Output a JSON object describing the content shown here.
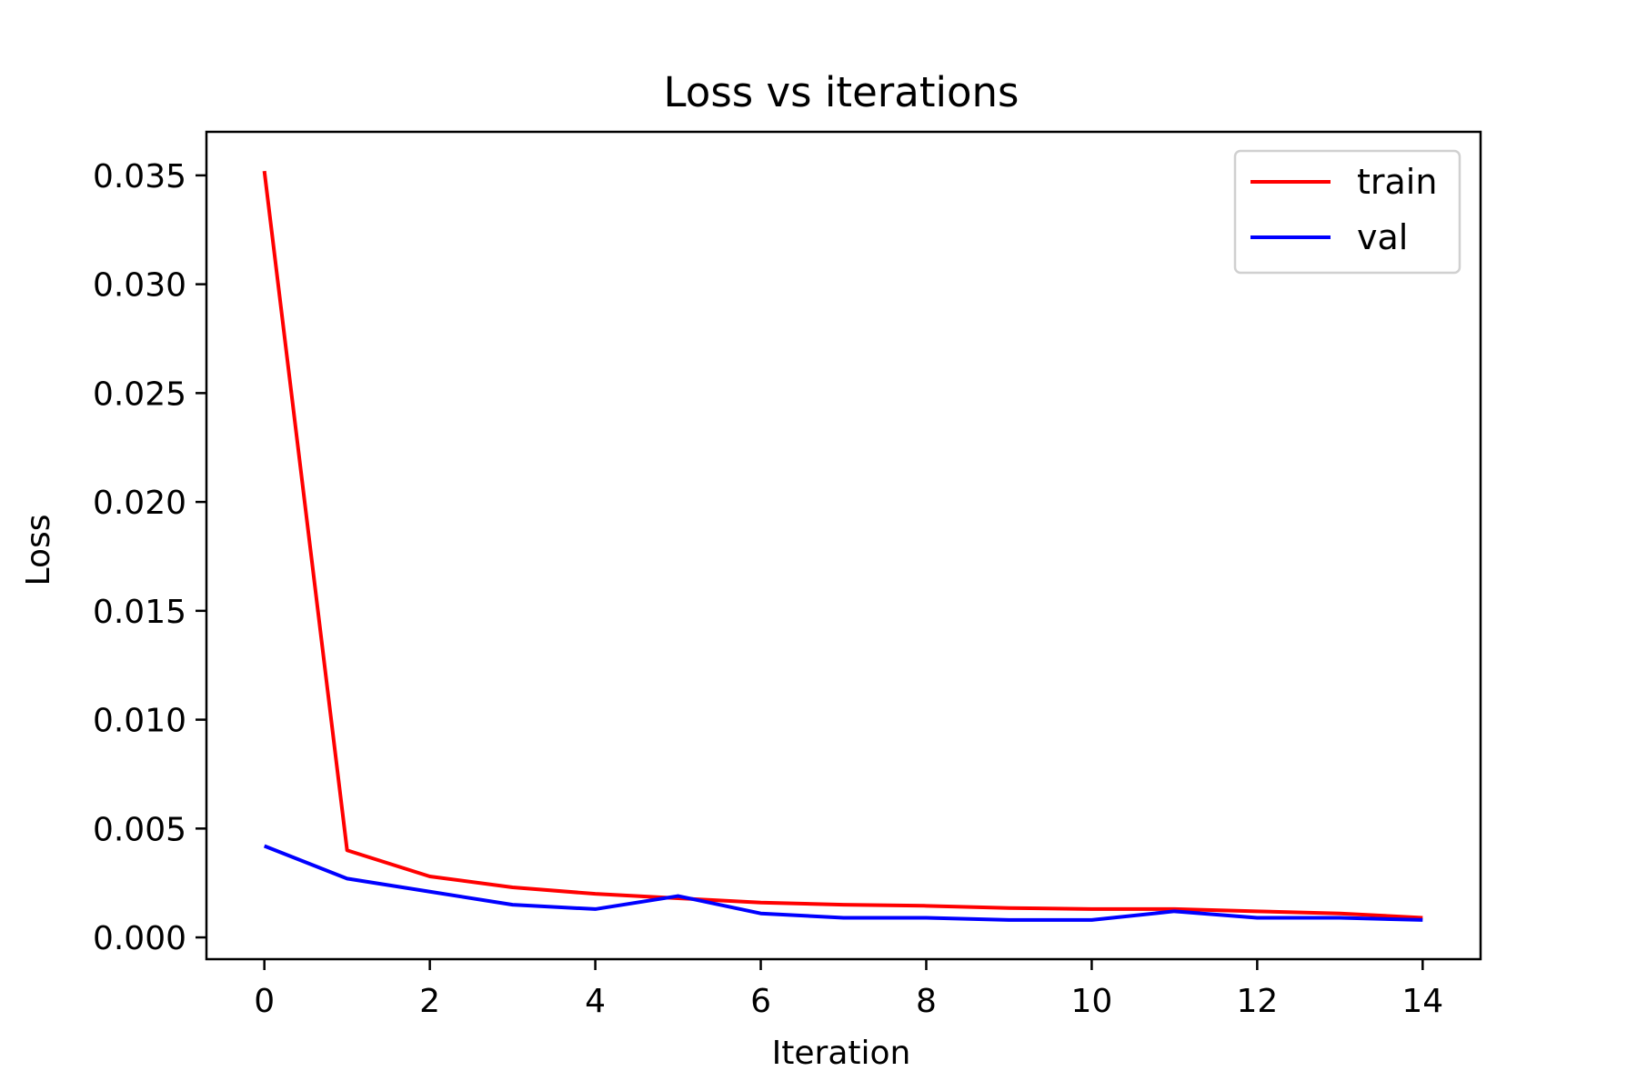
{
  "chart_data": {
    "type": "line",
    "title": "Loss vs iterations",
    "xlabel": "Iteration",
    "ylabel": "Loss",
    "x": [
      0,
      1,
      2,
      3,
      4,
      5,
      6,
      7,
      8,
      9,
      10,
      11,
      12,
      13,
      14
    ],
    "series": [
      {
        "name": "train",
        "color": "#ff0000",
        "values": [
          0.0352,
          0.004,
          0.0028,
          0.0023,
          0.002,
          0.0018,
          0.0016,
          0.0015,
          0.00145,
          0.00135,
          0.0013,
          0.0013,
          0.0012,
          0.0011,
          0.0009
        ]
      },
      {
        "name": "val",
        "color": "#0000ff",
        "values": [
          0.0042,
          0.0027,
          0.0021,
          0.0015,
          0.0013,
          0.0019,
          0.0011,
          0.0009,
          0.0009,
          0.0008,
          0.0008,
          0.0012,
          0.0009,
          0.0009,
          0.0008
        ]
      }
    ],
    "xlim": [
      -0.7,
      14.7
    ],
    "ylim": [
      -0.001,
      0.037
    ],
    "xticks": [
      0,
      2,
      4,
      6,
      8,
      10,
      12,
      14
    ],
    "xtick_labels": [
      "0",
      "2",
      "4",
      "6",
      "8",
      "10",
      "12",
      "14"
    ],
    "yticks": [
      0.0,
      0.005,
      0.01,
      0.015,
      0.02,
      0.025,
      0.03,
      0.035
    ],
    "ytick_labels": [
      "0.000",
      "0.005",
      "0.010",
      "0.015",
      "0.020",
      "0.025",
      "0.030",
      "0.035"
    ],
    "grid": false,
    "legend_position": "top-right"
  }
}
